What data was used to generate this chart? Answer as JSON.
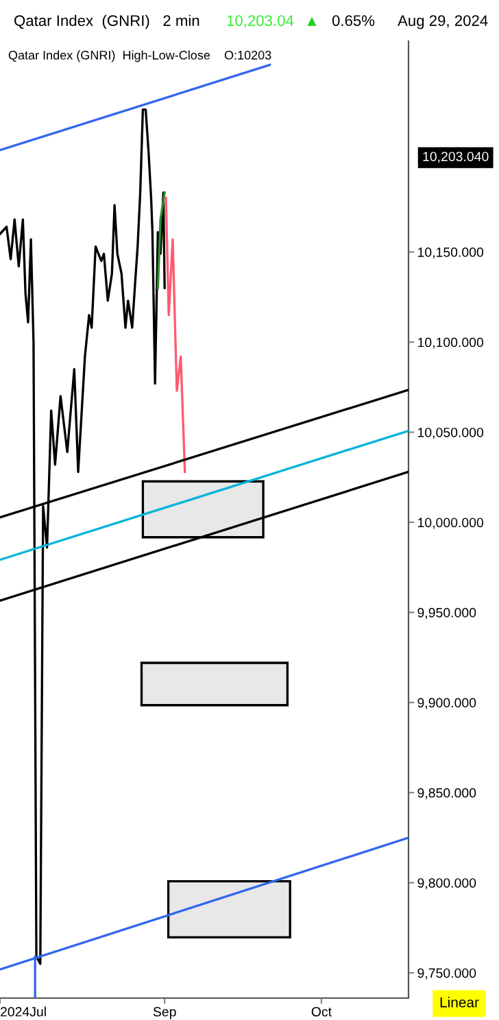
{
  "chart_data": {
    "type": "line",
    "title": "Qatar Index  (GNRI)   2 min",
    "subtitle": "Qatar Index (GNRI)  High-Low-Close    O:10203",
    "annotations": [
      "10,203.04",
      "▲",
      "0.65%",
      "Aug 29, 2024",
      "10,203.040",
      "Linear"
    ],
    "xlim": [
      "2024-07-31T12:00",
      "2024-10-17T16:00"
    ],
    "ylim": [
      9736,
      10267
    ],
    "xticks": [
      {
        "value": "2024-07-31T12:00",
        "label": "2024Jul"
      },
      {
        "value": "2024-09-01",
        "label": "Sep"
      },
      {
        "value": "2024-10-01",
        "label": "Oct"
      }
    ],
    "yticks": [
      {
        "value": 9750,
        "label": "9,750.000"
      },
      {
        "value": 9800,
        "label": "9,800.000"
      },
      {
        "value": 9850,
        "label": "9,850.000"
      },
      {
        "value": 9900,
        "label": "9,900.000"
      },
      {
        "value": 9950,
        "label": "9,950.000"
      },
      {
        "value": 10000,
        "label": "10,000.000"
      },
      {
        "value": 10050,
        "label": "10,050.000"
      },
      {
        "value": 10100,
        "label": "10,100.000"
      },
      {
        "value": 10150,
        "label": "10,150.000"
      }
    ],
    "grid": false,
    "marker": "none",
    "line_style": "solid",
    "series": [
      {
        "color": "#000000",
        "x": [
          "2024-07-31T12:00",
          "2024-08-01T18:00",
          "2024-08-02T13:00",
          "2024-08-03T07:00",
          "2024-08-04T02:00",
          "2024-08-04T21:00",
          "2024-08-05T09:00",
          "2024-08-05T21:00",
          "2024-08-06T10:00",
          "2024-08-06T22:00",
          "2024-08-07T11:00",
          "2024-08-08T05:00",
          "2024-08-08T18:00",
          "2024-08-09T12:00",
          "2024-08-10T07:00",
          "2024-08-11T01:00",
          "2024-08-12T02:00",
          "2024-08-13T09:00",
          "2024-08-14T17:00",
          "2024-08-15T11:00",
          "2024-08-16T18:00",
          "2024-08-17T13:00",
          "2024-08-18T01:00",
          "2024-08-18T19:00",
          "2024-08-19T21:00",
          "2024-08-20T09:00",
          "2024-08-21T03:00",
          "2024-08-21T22:00",
          "2024-08-22T10:00",
          "2024-08-22T23:00",
          "2024-08-23T18:00",
          "2024-08-24T12:00",
          "2024-08-25T00:00",
          "2024-08-25T19:00",
          "2024-08-26T07:00",
          "2024-08-26T20:00",
          "2024-08-27T08:00",
          "2024-08-27T20:00",
          "2024-08-28T09:00",
          "2024-08-28T22:00",
          "2024-08-29T10:00",
          "2024-08-29T16:00",
          "2024-08-30T04:00",
          "2024-08-30T17:00",
          "2024-08-31T05:00",
          "2024-08-31T18:00",
          "2024-09-01T00:00"
        ],
        "values": [
          10160,
          10164,
          10146,
          10168,
          10142,
          10168,
          10127,
          10111,
          10157,
          10100,
          9759,
          9755,
          10009,
          9986,
          10062,
          10032,
          10070,
          10039,
          10085,
          10028,
          10092,
          10115,
          10108,
          10153,
          10145,
          10149,
          10123,
          10138,
          10176,
          10149,
          10138,
          10108,
          10123,
          10108,
          10130,
          10153,
          10183,
          10229,
          10229,
          10206,
          10180,
          10161,
          10077,
          10161,
          10149,
          10183,
          10130
        ]
      },
      {
        "color": "#2e8b2e",
        "x": [
          "2024-08-30T17:00",
          "2024-08-31T05:00",
          "2024-09-01T00:00"
        ],
        "values": [
          10130,
          10168,
          10183
        ]
      },
      {
        "color": "#ff5a6e",
        "x": [
          "2024-09-01T06:00",
          "2024-09-01T19:00",
          "2024-09-02T13:00",
          "2024-09-03T08:00",
          "2024-09-04T02:00",
          "2024-09-04T21:00"
        ],
        "values": [
          10180,
          10115,
          10157,
          10073,
          10092,
          10028
        ]
      },
      {
        "color": "#3366ee",
        "x": [
          "2024-07-31T12:00",
          "2024-09-21T03:00"
        ],
        "values": [
          10206.5,
          10253.8
        ]
      },
      {
        "color": "#3366ee",
        "x": [
          "2024-07-31T12:00",
          "2024-10-17T16:00"
        ],
        "values": [
          9751.9,
          9825
        ]
      },
      {
        "color": "#3366ee",
        "x": [
          "2024-08-07T05:00",
          "2024-08-07T05:00"
        ],
        "values": [
          9759,
          9736
        ]
      },
      {
        "color": "#000000",
        "x": [
          "2024-07-31T12:00",
          "2024-10-17T16:00"
        ],
        "values": [
          10002.7,
          10073.5
        ]
      },
      {
        "color": "#000000",
        "x": [
          "2024-07-31T12:00",
          "2024-10-17T16:00"
        ],
        "values": [
          9956.5,
          10028
        ]
      },
      {
        "color": "#00b4d8",
        "x": [
          "2024-07-31T12:00",
          "2024-10-17T16:00"
        ],
        "values": [
          9979.2,
          10050.8
        ]
      },
      {
        "type": "area",
        "color": "#e8e8e8",
        "x": [
          "2024-08-27T20:00",
          "2024-09-19T21:00",
          "2024-09-19T21:00",
          "2024-08-27T20:00"
        ],
        "values": [
          10022.7,
          10022.7,
          9991.7,
          9991.7
        ]
      },
      {
        "type": "area",
        "color": "#e8e8e8",
        "x": [
          "2024-08-27T14:00",
          "2024-09-24T12:00",
          "2024-09-24T12:00",
          "2024-08-27T14:00"
        ],
        "values": [
          9922,
          9922,
          9898.5,
          9898.5
        ]
      },
      {
        "type": "area",
        "color": "#e8e8e8",
        "x": [
          "2024-09-01T17:00",
          "2024-09-25T00:00",
          "2024-09-25T00:00",
          "2024-09-01T17:00"
        ],
        "values": [
          9800.8,
          9800.8,
          9769.7,
          9769.7
        ]
      }
    ]
  }
}
